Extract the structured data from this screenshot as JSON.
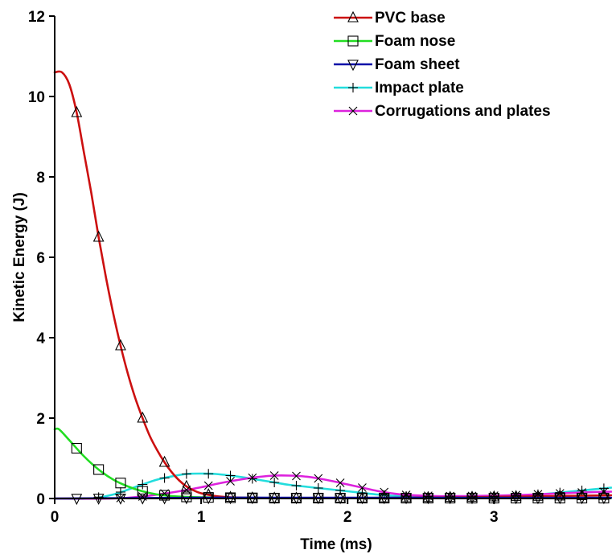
{
  "chart_data": {
    "type": "line",
    "xlabel": "Time (ms)",
    "ylabel": "Kinetic Energy (J)",
    "xlim": [
      0,
      3.8
    ],
    "ylim": [
      0,
      12
    ],
    "xticks": [
      0,
      1,
      2,
      3
    ],
    "yticks": [
      0,
      2,
      4,
      6,
      8,
      10,
      12
    ],
    "grid": false,
    "legend_position": "top-right",
    "series": [
      {
        "name": "PVC base",
        "color": "#cc1010",
        "marker": "triangle-up",
        "x": [
          0,
          0.05,
          0.1,
          0.15,
          0.2,
          0.25,
          0.3,
          0.35,
          0.4,
          0.45,
          0.5,
          0.55,
          0.6,
          0.65,
          0.7,
          0.75,
          0.8,
          0.85,
          0.9,
          0.95,
          1.0,
          1.1,
          1.2,
          1.3,
          1.4,
          1.6,
          1.8,
          2.0,
          2.4,
          2.8,
          3.2,
          3.6,
          3.8
        ],
        "y": [
          10.6,
          10.6,
          10.3,
          9.6,
          8.6,
          7.6,
          6.5,
          5.5,
          4.6,
          3.8,
          3.1,
          2.5,
          2.0,
          1.55,
          1.2,
          0.9,
          0.65,
          0.45,
          0.3,
          0.2,
          0.13,
          0.06,
          0.03,
          0.02,
          0.01,
          0.01,
          0.01,
          0.01,
          0.02,
          0.03,
          0.05,
          0.07,
          0.08
        ],
        "marker_x": [
          0.15,
          0.3,
          0.45,
          0.6,
          0.75,
          0.9,
          1.05,
          1.2,
          1.35,
          1.5,
          1.65,
          1.8,
          1.95,
          2.1,
          2.25,
          2.4,
          2.55,
          2.7,
          2.85,
          3.0,
          3.15,
          3.3,
          3.45,
          3.6,
          3.75
        ]
      },
      {
        "name": "Foam nose",
        "color": "#22dd22",
        "marker": "square",
        "x": [
          0,
          0.03,
          0.1,
          0.2,
          0.3,
          0.4,
          0.5,
          0.6,
          0.7,
          0.8,
          0.9,
          1.0,
          1.2,
          1.5,
          2.0,
          2.5,
          3.0,
          3.5,
          3.8
        ],
        "y": [
          1.72,
          1.72,
          1.45,
          1.05,
          0.72,
          0.47,
          0.3,
          0.18,
          0.1,
          0.06,
          0.04,
          0.03,
          0.02,
          0.01,
          0.01,
          0.01,
          0.01,
          0.01,
          0.01
        ],
        "marker_x": [
          0.15,
          0.3,
          0.45,
          0.6,
          0.75,
          0.9,
          1.05,
          1.2,
          1.35,
          1.5,
          1.65,
          1.8,
          1.95,
          2.1,
          2.25,
          2.4,
          2.55,
          2.7,
          2.85,
          3.0,
          3.15,
          3.3,
          3.45,
          3.6,
          3.75
        ]
      },
      {
        "name": "Foam sheet",
        "color": "#0a10a8",
        "marker": "triangle-down",
        "x": [
          0,
          0.5,
          1.0,
          1.5,
          2.0,
          2.5,
          3.0,
          3.5,
          3.8
        ],
        "y": [
          0.0,
          0.01,
          0.02,
          0.02,
          0.02,
          0.02,
          0.02,
          0.02,
          0.02
        ],
        "marker_x": [
          0.15,
          0.3,
          0.45,
          0.6,
          0.75,
          0.9,
          1.05,
          1.2,
          1.35,
          1.5,
          1.65,
          1.8,
          1.95,
          2.1,
          2.25,
          2.4,
          2.55,
          2.7,
          2.85,
          3.0,
          3.15,
          3.3,
          3.45,
          3.6,
          3.75
        ]
      },
      {
        "name": "Impact plate",
        "color": "#22dddd",
        "marker": "plus",
        "x": [
          0,
          0.25,
          0.4,
          0.5,
          0.6,
          0.7,
          0.8,
          0.9,
          1.0,
          1.1,
          1.2,
          1.3,
          1.4,
          1.5,
          1.6,
          1.7,
          1.8,
          1.9,
          2.0,
          2.1,
          2.2,
          2.3,
          2.5,
          2.8,
          3.0,
          3.2,
          3.4,
          3.6,
          3.8
        ],
        "y": [
          0.0,
          0.0,
          0.1,
          0.22,
          0.35,
          0.47,
          0.55,
          0.61,
          0.62,
          0.61,
          0.57,
          0.52,
          0.46,
          0.4,
          0.34,
          0.3,
          0.26,
          0.22,
          0.18,
          0.14,
          0.1,
          0.07,
          0.05,
          0.04,
          0.05,
          0.08,
          0.13,
          0.2,
          0.27
        ],
        "marker_x": [
          0.3,
          0.45,
          0.6,
          0.75,
          0.9,
          1.05,
          1.2,
          1.35,
          1.5,
          1.65,
          1.8,
          1.95,
          2.1,
          2.25,
          2.4,
          2.55,
          2.7,
          2.85,
          3.0,
          3.15,
          3.3,
          3.45,
          3.6,
          3.75
        ]
      },
      {
        "name": "Corrugations and plates",
        "color": "#dd22dd",
        "marker": "x",
        "x": [
          0,
          0.4,
          0.6,
          0.8,
          1.0,
          1.1,
          1.2,
          1.3,
          1.4,
          1.5,
          1.6,
          1.7,
          1.8,
          1.9,
          2.0,
          2.1,
          2.2,
          2.3,
          2.4,
          2.6,
          2.8,
          3.0,
          3.2,
          3.4,
          3.6,
          3.8
        ],
        "y": [
          0.0,
          0.0,
          0.05,
          0.15,
          0.28,
          0.36,
          0.43,
          0.49,
          0.54,
          0.57,
          0.57,
          0.55,
          0.5,
          0.43,
          0.35,
          0.27,
          0.19,
          0.13,
          0.09,
          0.06,
          0.06,
          0.07,
          0.09,
          0.12,
          0.15,
          0.17
        ],
        "marker_x": [
          0.45,
          0.6,
          0.75,
          0.9,
          1.05,
          1.2,
          1.35,
          1.5,
          1.65,
          1.8,
          1.95,
          2.1,
          2.25,
          2.4,
          2.55,
          2.7,
          2.85,
          3.0,
          3.15,
          3.3,
          3.45,
          3.6,
          3.75
        ]
      }
    ]
  }
}
